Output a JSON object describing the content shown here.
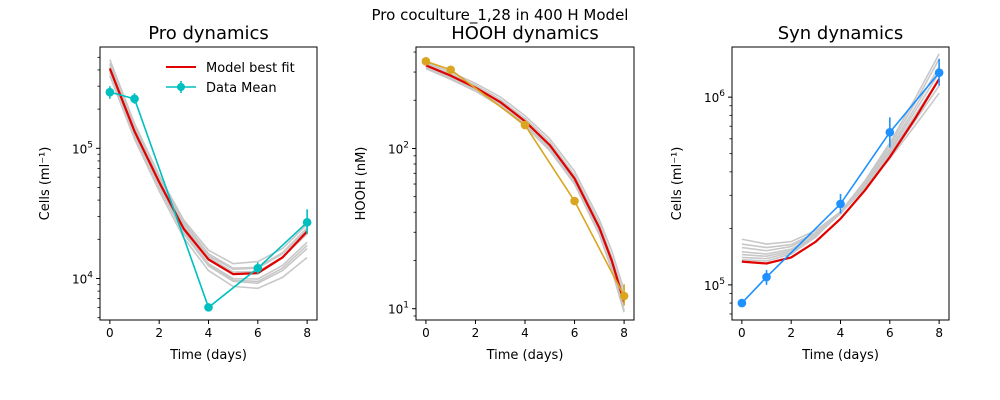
{
  "suptitle": "Pro coculture_1,28 in 400 H Model",
  "chart_data": [
    {
      "type": "line",
      "title": "Pro dynamics",
      "xlabel": "Time (days)",
      "ylabel": "Cells (ml⁻¹)",
      "yscale": "log",
      "xlim": [
        -0.4,
        8.4
      ],
      "ylim": [
        4800,
        600000
      ],
      "xticks": [
        0,
        2,
        4,
        6,
        8
      ],
      "yticks": [
        {
          "value": 10000,
          "label": "10",
          "exp": "4"
        },
        {
          "value": 100000,
          "label": "10",
          "exp": "5"
        }
      ],
      "legend": {
        "position": "top-right",
        "entries": [
          " Model best fit",
          "Data Mean"
        ]
      },
      "data": {
        "name": "Data Mean",
        "color": "#00BFBF",
        "x": [
          0,
          1,
          4,
          6,
          8
        ],
        "y": [
          270000,
          240000,
          6000,
          12000,
          27000
        ],
        "err": [
          [
            240000,
            300000
          ],
          [
            220000,
            265000
          ],
          [
            5700,
            6400
          ],
          [
            10800,
            13300
          ],
          [
            22000,
            34000
          ]
        ]
      },
      "model": {
        "name": " Model best fit",
        "color": "#E00000",
        "x": [
          0,
          1,
          2,
          3,
          4,
          5,
          6,
          7,
          8
        ],
        "y": [
          410000,
          135000,
          55000,
          24000,
          14000,
          10800,
          11000,
          14500,
          23000
        ]
      },
      "ensemble": {
        "color": "#C8C8C8",
        "curves": [
          [
            480000,
            155000,
            62000,
            28000,
            16500,
            13000,
            13500,
            17000,
            26000
          ],
          [
            450000,
            150000,
            60000,
            27000,
            15500,
            12000,
            12200,
            15800,
            24500
          ],
          [
            380000,
            125000,
            50000,
            22000,
            12500,
            9500,
            9200,
            11500,
            17000
          ],
          [
            360000,
            118000,
            47000,
            20500,
            11500,
            8700,
            8400,
            10200,
            14500
          ],
          [
            420000,
            140000,
            57000,
            25000,
            14500,
            11200,
            11300,
            14600,
            22000
          ],
          [
            400000,
            130000,
            52000,
            23000,
            13000,
            10000,
            9900,
            12600,
            19000
          ],
          [
            440000,
            145000,
            58000,
            26000,
            15000,
            11800,
            12000,
            15500,
            24000
          ],
          [
            390000,
            128000,
            51000,
            22500,
            12800,
            9700,
            9500,
            12000,
            18000
          ]
        ]
      }
    },
    {
      "type": "line",
      "title": "HOOH dynamics",
      "xlabel": "Time (days)",
      "ylabel": "HOOH (nM)",
      "yscale": "log",
      "xlim": [
        -0.4,
        8.4
      ],
      "ylim": [
        8.5,
        430
      ],
      "xticks": [
        0,
        2,
        4,
        6,
        8
      ],
      "yticks": [
        {
          "value": 10,
          "label": "10",
          "exp": "1"
        },
        {
          "value": 100,
          "label": "10",
          "exp": "2"
        }
      ],
      "data": {
        "name": "Data Mean",
        "color": "#DAA520",
        "x": [
          0,
          1,
          4,
          6,
          8
        ],
        "y": [
          350,
          310,
          140,
          47,
          12
        ],
        "err": [
          [
            340,
            362
          ],
          [
            300,
            320
          ],
          [
            133,
            147
          ],
          [
            45,
            49
          ],
          [
            10.5,
            14.2
          ]
        ]
      },
      "model": {
        "name": " Model best fit",
        "color": "#E00000",
        "x": [
          0,
          1,
          2,
          3,
          4,
          5,
          6,
          7,
          7.5,
          8
        ],
        "y": [
          330,
          285,
          240,
          195,
          148,
          105,
          65,
          32,
          20,
          11
        ]
      },
      "ensemble": {
        "color": "#C8C8C8",
        "curves": [
          [
            345,
            300,
            255,
            210,
            160,
            115,
            72,
            36,
            23,
            13
          ],
          [
            320,
            275,
            232,
            188,
            142,
            100,
            62,
            30,
            18,
            9.8
          ],
          [
            338,
            292,
            248,
            202,
            154,
            110,
            68,
            34,
            21,
            12
          ],
          [
            325,
            280,
            236,
            191,
            145,
            102,
            63,
            31,
            19,
            10.4
          ],
          [
            315,
            270,
            228,
            184,
            138,
            97,
            60,
            29,
            17.5,
            9.5
          ]
        ]
      }
    },
    {
      "type": "line",
      "title": "Syn dynamics",
      "xlabel": "Time (days)",
      "ylabel": "Cells (ml⁻¹)",
      "yscale": "log",
      "xlim": [
        -0.4,
        8.4
      ],
      "ylim": [
        65000,
        1850000
      ],
      "xticks": [
        0,
        2,
        4,
        6,
        8
      ],
      "yticks": [
        {
          "value": 100000,
          "label": "10",
          "exp": "5"
        },
        {
          "value": 1000000,
          "label": "10",
          "exp": "6"
        }
      ],
      "data": {
        "name": "Data Mean",
        "color": "#1E90FF",
        "x": [
          0,
          1,
          4,
          6,
          8
        ],
        "y": [
          80000,
          110000,
          270000,
          650000,
          1350000
        ],
        "err": [
          [
            77000,
            83000
          ],
          [
            100000,
            120000
          ],
          [
            240000,
            305000
          ],
          [
            540000,
            780000
          ],
          [
            1150000,
            1600000
          ]
        ]
      },
      "model": {
        "name": " Model best fit",
        "color": "#E00000",
        "x": [
          0,
          1,
          2,
          3,
          4,
          5,
          6,
          7,
          8
        ],
        "y": [
          133000,
          130000,
          140000,
          170000,
          225000,
          320000,
          480000,
          760000,
          1250000
        ]
      },
      "ensemble": {
        "color": "#C8C8C8",
        "curves": [
          [
            175000,
            165000,
            170000,
            195000,
            245000,
            330000,
            470000,
            700000,
            1050000
          ],
          [
            165000,
            158000,
            164000,
            190000,
            240000,
            330000,
            480000,
            740000,
            1150000
          ],
          [
            158000,
            152000,
            160000,
            188000,
            242000,
            338000,
            500000,
            790000,
            1250000
          ],
          [
            150000,
            146000,
            155000,
            184000,
            240000,
            340000,
            515000,
            830000,
            1350000
          ],
          [
            145000,
            142000,
            152000,
            182000,
            240000,
            345000,
            530000,
            870000,
            1450000
          ],
          [
            140000,
            138000,
            149000,
            181000,
            242000,
            352000,
            550000,
            920000,
            1600000
          ],
          [
            136000,
            134000,
            146000,
            180000,
            245000,
            360000,
            570000,
            970000,
            1700000
          ]
        ]
      }
    }
  ]
}
